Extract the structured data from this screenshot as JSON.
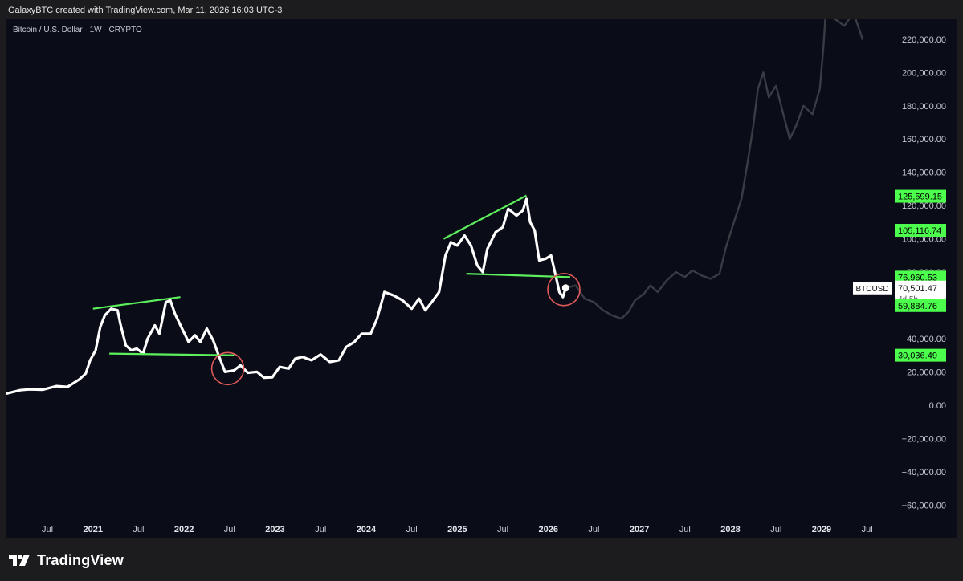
{
  "caption": "GalaxyBTC created with TradingView.com, Mar 11, 2026 16:03 UTC-3",
  "footer": {
    "brand": "TradingView",
    "logo_icon": "tradingview-logo-icon"
  },
  "colors": {
    "background": "#0a0c17",
    "price_line": "#ffffff",
    "projection": "#3a3c44",
    "trendline": "#5cf05c",
    "circle": "#e05a5a",
    "label_green": "#4cff4c"
  },
  "chart_data": {
    "type": "line",
    "symbol_label": "Bitcoin / U.S. Dollar · 1W · CRYPTO",
    "ylim": [
      -70000,
      232000
    ],
    "y_ticks": [
      220000,
      200000,
      180000,
      160000,
      140000,
      120000,
      100000,
      80000,
      40000,
      20000,
      0,
      -20000,
      -40000,
      -60000
    ],
    "y_tick_labels": [
      "220,000.00",
      "200,000.00",
      "180,000.00",
      "160,000.00",
      "140,000.00",
      "120,000.00",
      "100,000.00",
      "80,000.00",
      "40,000.00",
      "20,000.00",
      "0.00",
      "−20,000.00",
      "−40,000.00",
      "−60,000.00"
    ],
    "x_ticks": [
      {
        "label": "Jul",
        "x": 2020.5,
        "year": false
      },
      {
        "label": "2021",
        "x": 2021.0,
        "year": true
      },
      {
        "label": "Jul",
        "x": 2021.5,
        "year": false
      },
      {
        "label": "2022",
        "x": 2022.0,
        "year": true
      },
      {
        "label": "Jul",
        "x": 2022.5,
        "year": false
      },
      {
        "label": "2023",
        "x": 2023.0,
        "year": true
      },
      {
        "label": "Jul",
        "x": 2023.5,
        "year": false
      },
      {
        "label": "2024",
        "x": 2024.0,
        "year": true
      },
      {
        "label": "Jul",
        "x": 2024.5,
        "year": false
      },
      {
        "label": "2025",
        "x": 2025.0,
        "year": true
      },
      {
        "label": "Jul",
        "x": 2025.5,
        "year": false
      },
      {
        "label": "2026",
        "x": 2026.0,
        "year": true
      },
      {
        "label": "Jul",
        "x": 2026.5,
        "year": false
      },
      {
        "label": "2027",
        "x": 2027.0,
        "year": true
      },
      {
        "label": "Jul",
        "x": 2027.5,
        "year": false
      },
      {
        "label": "2028",
        "x": 2028.0,
        "year": true
      },
      {
        "label": "Jul",
        "x": 2028.5,
        "year": false
      },
      {
        "label": "2029",
        "x": 2029.0,
        "year": true
      },
      {
        "label": "Jul",
        "x": 2029.5,
        "year": false
      }
    ],
    "xlim": [
      2020.05,
      2029.75
    ],
    "series": [
      {
        "name": "BTCUSD",
        "points": [
          [
            2020.05,
            7000
          ],
          [
            2020.2,
            9000
          ],
          [
            2020.3,
            9500
          ],
          [
            2020.45,
            9300
          ],
          [
            2020.6,
            11500
          ],
          [
            2020.72,
            11000
          ],
          [
            2020.85,
            15500
          ],
          [
            2020.92,
            19000
          ],
          [
            2020.97,
            27000
          ],
          [
            2021.03,
            33000
          ],
          [
            2021.08,
            47000
          ],
          [
            2021.13,
            54000
          ],
          [
            2021.2,
            58000
          ],
          [
            2021.27,
            57000
          ],
          [
            2021.3,
            49000
          ],
          [
            2021.36,
            36000
          ],
          [
            2021.42,
            33000
          ],
          [
            2021.48,
            34000
          ],
          [
            2021.55,
            31000
          ],
          [
            2021.6,
            40000
          ],
          [
            2021.68,
            48000
          ],
          [
            2021.73,
            43000
          ],
          [
            2021.8,
            62000
          ],
          [
            2021.85,
            63000
          ],
          [
            2021.9,
            55000
          ],
          [
            2021.97,
            47000
          ],
          [
            2022.05,
            38000
          ],
          [
            2022.12,
            42000
          ],
          [
            2022.18,
            38000
          ],
          [
            2022.25,
            46000
          ],
          [
            2022.32,
            39000
          ],
          [
            2022.38,
            30000
          ],
          [
            2022.45,
            20000
          ],
          [
            2022.55,
            21000
          ],
          [
            2022.62,
            24000
          ],
          [
            2022.7,
            19500
          ],
          [
            2022.8,
            20000
          ],
          [
            2022.88,
            16500
          ],
          [
            2022.97,
            16800
          ],
          [
            2023.05,
            23000
          ],
          [
            2023.15,
            22000
          ],
          [
            2023.22,
            28000
          ],
          [
            2023.3,
            29000
          ],
          [
            2023.4,
            27000
          ],
          [
            2023.5,
            30500
          ],
          [
            2023.6,
            26000
          ],
          [
            2023.7,
            27000
          ],
          [
            2023.78,
            35000
          ],
          [
            2023.87,
            38000
          ],
          [
            2023.95,
            43000
          ],
          [
            2024.05,
            43000
          ],
          [
            2024.12,
            52000
          ],
          [
            2024.2,
            68000
          ],
          [
            2024.3,
            66000
          ],
          [
            2024.4,
            63000
          ],
          [
            2024.5,
            58000
          ],
          [
            2024.58,
            64000
          ],
          [
            2024.65,
            57000
          ],
          [
            2024.72,
            62000
          ],
          [
            2024.8,
            68000
          ],
          [
            2024.87,
            90000
          ],
          [
            2024.93,
            98000
          ],
          [
            2025.0,
            96000
          ],
          [
            2025.08,
            102000
          ],
          [
            2025.15,
            96000
          ],
          [
            2025.22,
            84000
          ],
          [
            2025.28,
            80000
          ],
          [
            2025.33,
            94000
          ],
          [
            2025.42,
            104000
          ],
          [
            2025.5,
            107000
          ],
          [
            2025.56,
            118000
          ],
          [
            2025.65,
            114000
          ],
          [
            2025.72,
            117000
          ],
          [
            2025.76,
            124000
          ],
          [
            2025.8,
            110000
          ],
          [
            2025.85,
            105000
          ],
          [
            2025.9,
            87000
          ],
          [
            2025.97,
            88000
          ],
          [
            2026.03,
            90000
          ],
          [
            2026.08,
            78000
          ],
          [
            2026.12,
            68000
          ],
          [
            2026.16,
            65000
          ],
          [
            2026.19,
            70500
          ]
        ]
      },
      {
        "name": "projection",
        "points": [
          [
            2026.19,
            70500
          ],
          [
            2026.3,
            72000
          ],
          [
            2026.4,
            64000
          ],
          [
            2026.5,
            62000
          ],
          [
            2026.6,
            57000
          ],
          [
            2026.7,
            54000
          ],
          [
            2026.8,
            52000
          ],
          [
            2026.88,
            56000
          ],
          [
            2026.95,
            63000
          ],
          [
            2027.05,
            67000
          ],
          [
            2027.12,
            72000
          ],
          [
            2027.2,
            68000
          ],
          [
            2027.3,
            75000
          ],
          [
            2027.4,
            80000
          ],
          [
            2027.5,
            77000
          ],
          [
            2027.58,
            81000
          ],
          [
            2027.68,
            78000
          ],
          [
            2027.78,
            76000
          ],
          [
            2027.88,
            79000
          ],
          [
            2027.95,
            95000
          ],
          [
            2028.05,
            112000
          ],
          [
            2028.12,
            124000
          ],
          [
            2028.2,
            150000
          ],
          [
            2028.25,
            168000
          ],
          [
            2028.3,
            190000
          ],
          [
            2028.36,
            200000
          ],
          [
            2028.42,
            185000
          ],
          [
            2028.5,
            192000
          ],
          [
            2028.58,
            175000
          ],
          [
            2028.65,
            160000
          ],
          [
            2028.72,
            168000
          ],
          [
            2028.8,
            180000
          ],
          [
            2028.9,
            175000
          ],
          [
            2028.98,
            190000
          ],
          [
            2029.02,
            215000
          ],
          [
            2029.05,
            240000
          ],
          [
            2029.15,
            232000
          ],
          [
            2029.25,
            228000
          ],
          [
            2029.35,
            236000
          ],
          [
            2029.45,
            220000
          ]
        ]
      }
    ],
    "trendlines": [
      {
        "name": "2021-top",
        "from": [
          2021.0,
          58000
        ],
        "to": [
          2021.96,
          65000
        ]
      },
      {
        "name": "2021-support",
        "from": [
          2021.18,
          31000
        ],
        "to": [
          2022.55,
          30000
        ]
      },
      {
        "name": "2025-top",
        "from": [
          2024.85,
          100000
        ],
        "to": [
          2025.76,
          126000
        ]
      },
      {
        "name": "2025-support",
        "from": [
          2025.1,
          79000
        ],
        "to": [
          2026.24,
          77000
        ]
      }
    ],
    "circles": [
      {
        "name": "2022-breakdown",
        "center": [
          2022.48,
          22000
        ]
      },
      {
        "name": "2026-breakdown",
        "center": [
          2026.17,
          69500
        ]
      }
    ],
    "price_labels": [
      {
        "value": 125599.15,
        "text": "125,599.15",
        "style": "green"
      },
      {
        "value": 105116.74,
        "text": "105,116.74",
        "style": "green"
      },
      {
        "value": 76960.53,
        "text": "76,960.53",
        "style": "green"
      },
      {
        "value": 70501.47,
        "text": "70,501.47",
        "style": "current",
        "symbol": "BTCUSD",
        "countdown": "4d 5h"
      },
      {
        "value": 59884.76,
        "text": "59,884.76",
        "style": "green"
      },
      {
        "value": 30036.49,
        "text": "30,036.49",
        "style": "green"
      }
    ]
  }
}
